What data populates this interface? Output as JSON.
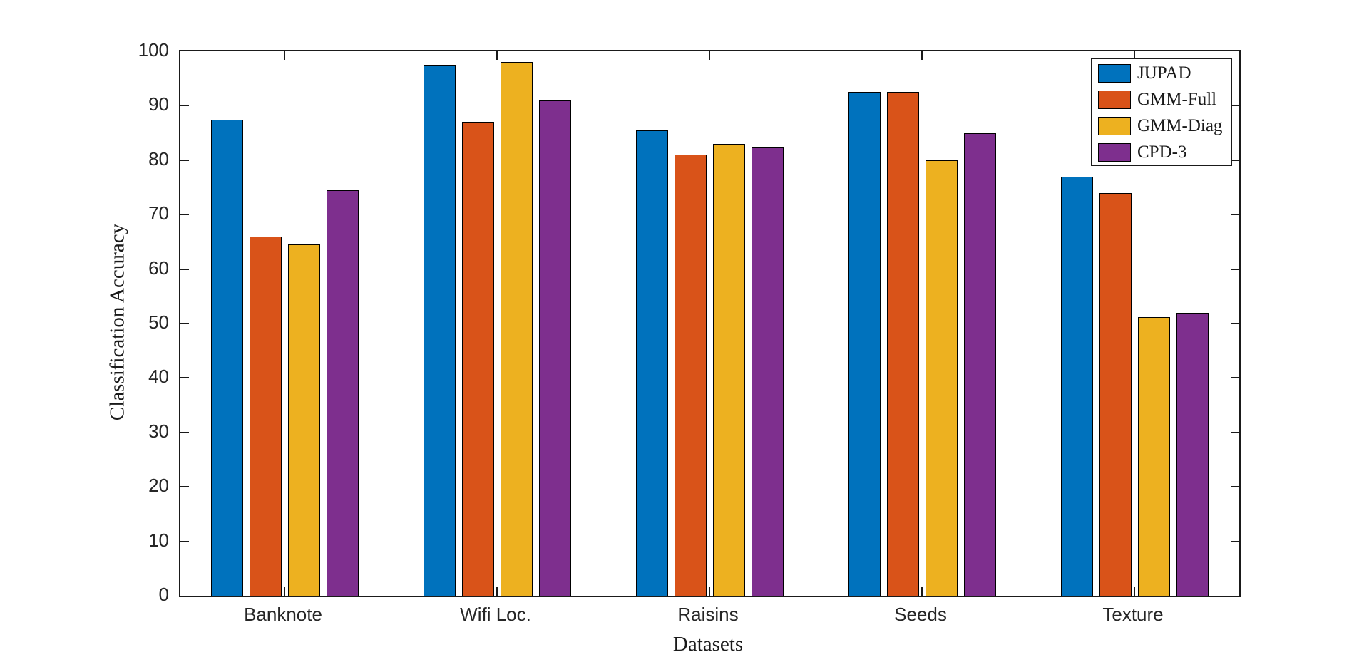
{
  "figure": {
    "background": "#ffffff",
    "axis_color": "#1a1a1a",
    "tick_label_color": "#262626"
  },
  "chart_data": {
    "type": "bar",
    "title": "",
    "xlabel": "Datasets",
    "ylabel": "Classification Accuracy",
    "categories": [
      "Banknote",
      "Wifi Loc.",
      "Raisins",
      "Seeds",
      "Texture"
    ],
    "series": [
      {
        "name": "JUPAD",
        "color": "#0072BD",
        "values": [
          87.5,
          97.5,
          85.5,
          92.5,
          77.0
        ]
      },
      {
        "name": "GMM-Full",
        "color": "#D95319",
        "values": [
          66.0,
          87.0,
          81.0,
          92.5,
          74.0
        ]
      },
      {
        "name": "GMM-Diag",
        "color": "#EDB120",
        "values": [
          64.5,
          98.0,
          83.0,
          80.0,
          51.2
        ]
      },
      {
        "name": "CPD-3",
        "color": "#7E2F8E",
        "values": [
          74.5,
          91.0,
          82.5,
          85.0,
          52.0
        ]
      }
    ],
    "ylim": [
      0,
      100
    ],
    "yticks": [
      0,
      10,
      20,
      30,
      40,
      50,
      60,
      70,
      80,
      90,
      100
    ],
    "grid": false,
    "legend_position": "top-right",
    "bar_edge_color": "#000000"
  }
}
